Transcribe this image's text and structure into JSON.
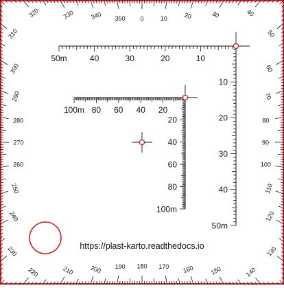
{
  "url": "https://plast-karto.readthedocs.io",
  "compass": {
    "label_step_deg": 10,
    "labels": [
      "0",
      "10",
      "20",
      "30",
      "40",
      "50",
      "60",
      "70",
      "80",
      "90",
      "100",
      "110",
      "120",
      "130",
      "140",
      "150",
      "160",
      "170",
      "180",
      "190",
      "200",
      "210",
      "220",
      "230",
      "240",
      "250",
      "260",
      "270",
      "280",
      "290",
      "300",
      "310",
      "320",
      "330",
      "340",
      "350"
    ]
  },
  "scale_50m": {
    "unit_label": "50m",
    "labels": [
      "10",
      "20",
      "30",
      "40"
    ]
  },
  "scale_100m": {
    "unit_label": "100m",
    "labels": [
      "20",
      "40",
      "60",
      "80"
    ]
  },
  "colors": {
    "border": "#d62020",
    "ink": "#111111",
    "background": "#ffffff"
  }
}
